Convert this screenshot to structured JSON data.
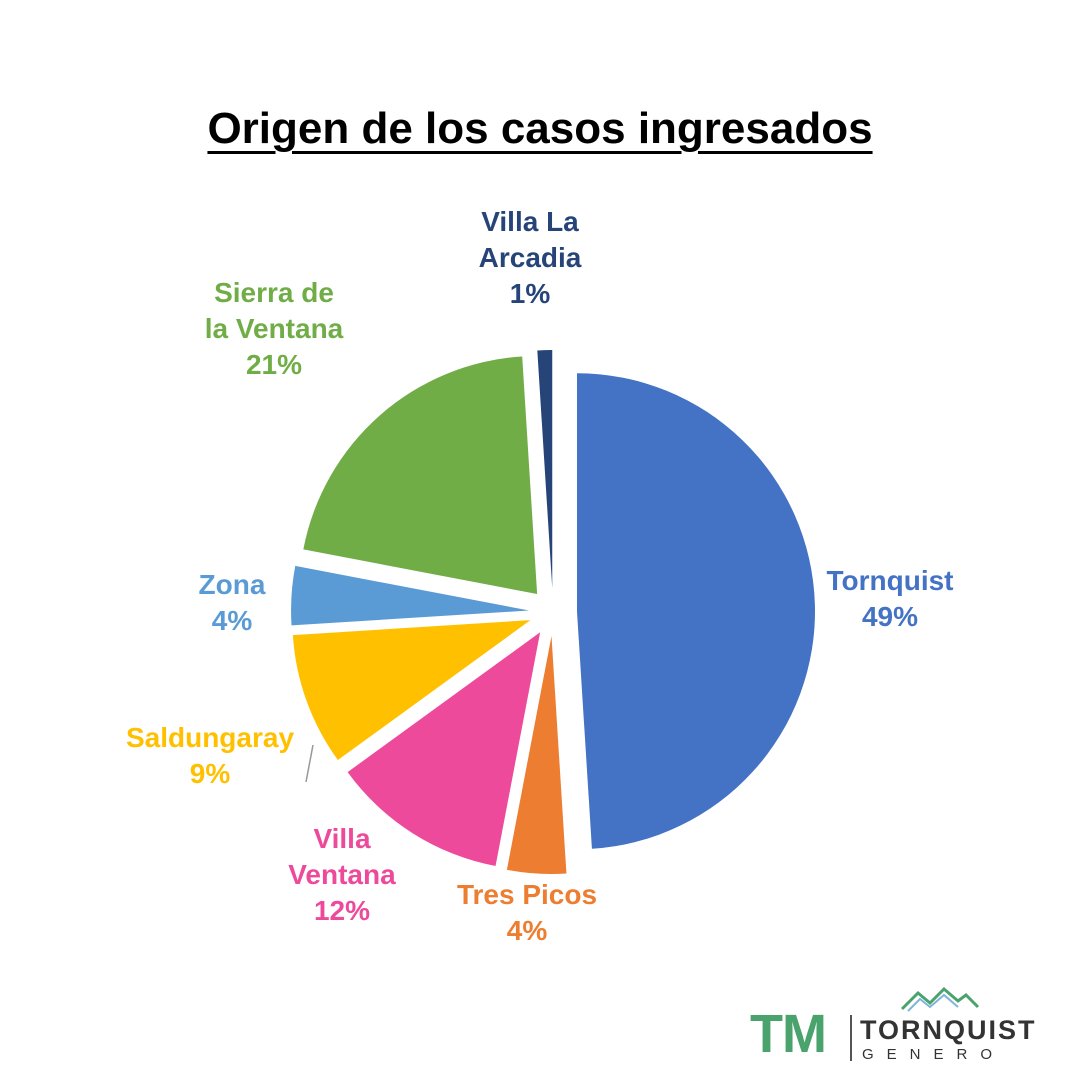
{
  "chart_data": {
    "type": "pie",
    "title": "Origen de los casos ingresados",
    "slices": [
      {
        "label": [
          "Tornquist"
        ],
        "value": 49,
        "value_label": "49%",
        "color": "#4472C4"
      },
      {
        "label": [
          "Tres Picos"
        ],
        "value": 4,
        "value_label": "4%",
        "color": "#ED7D31"
      },
      {
        "label": [
          "Villa",
          "Ventana"
        ],
        "value": 12,
        "value_label": "12%",
        "color": "#EE4A9B"
      },
      {
        "label": [
          "Saldungaray"
        ],
        "value": 9,
        "value_label": "9%",
        "color": "#FFC000"
      },
      {
        "label": [
          "Zona"
        ],
        "value": 4,
        "value_label": "4%",
        "color": "#5B9BD5"
      },
      {
        "label": [
          "Sierra de",
          "la Ventana"
        ],
        "value": 21,
        "value_label": "21%",
        "color": "#70AD47"
      },
      {
        "label": [
          "Villa La",
          "Arcadia"
        ],
        "value": 1,
        "value_label": "1%",
        "color": "#264478"
      }
    ],
    "label_colors": [
      "#4472C4",
      "#ED7D31",
      "#EE4A9B",
      "#FFC000",
      "#5B9BD5",
      "#70AD47",
      "#264478"
    ],
    "exploded": true,
    "legend": "none"
  },
  "logo": {
    "mark": "TM",
    "name": "TORNQUIST",
    "sub": "GENERO",
    "color_mark": "#4aa36c",
    "icon": "mountain-icon"
  }
}
